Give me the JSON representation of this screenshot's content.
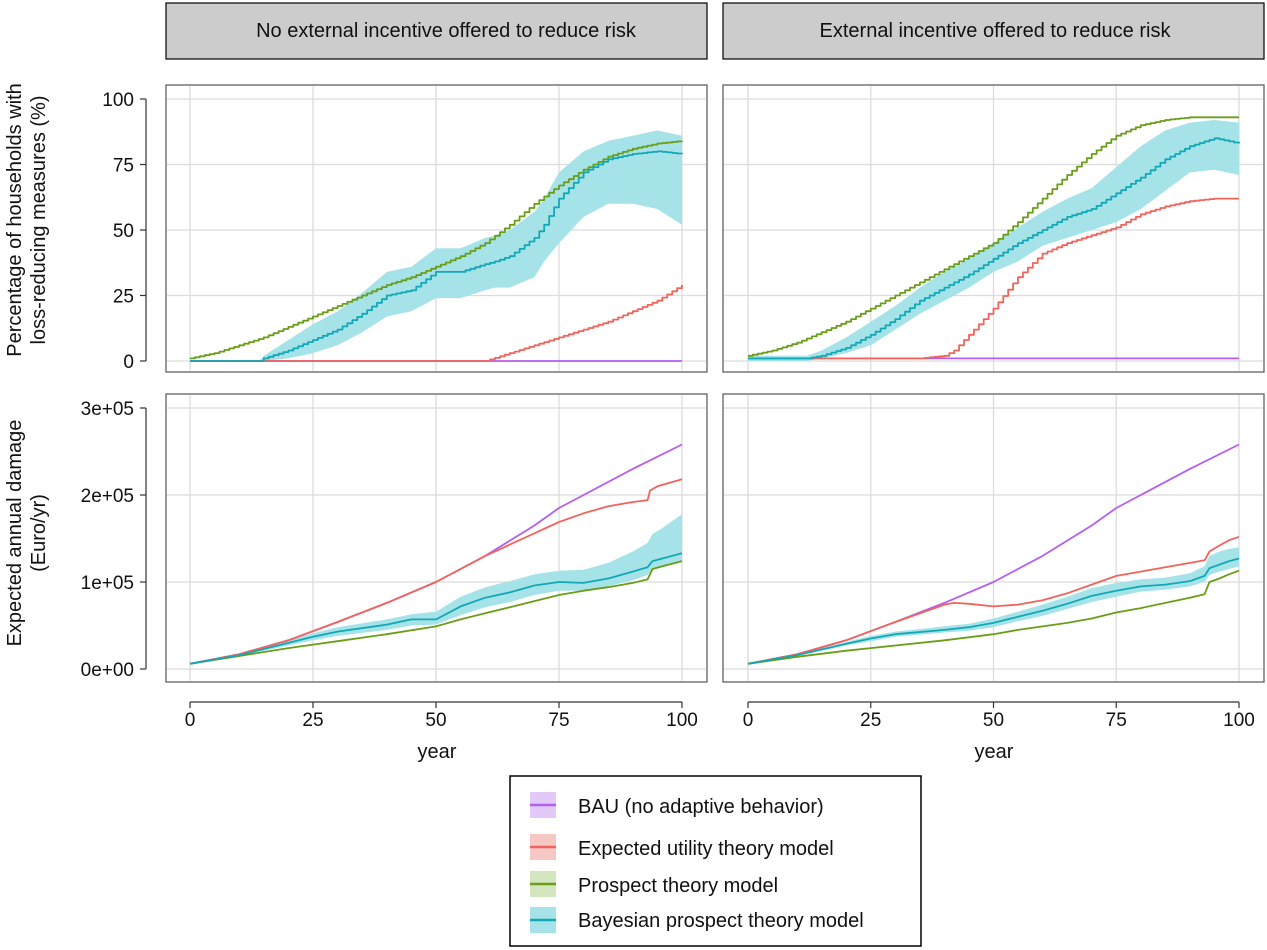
{
  "chart_data": {
    "type": "line",
    "facets": {
      "columns": [
        "No external incentive offered to reduce risk",
        "External incentive offered to reduce risk"
      ],
      "rows": [
        "adoption",
        "damage"
      ]
    },
    "xlabel": "year",
    "ylabels": {
      "adoption": [
        "Percentage of households with",
        "loss-reducing measures (%)"
      ],
      "damage": [
        "Expected annual damage",
        "(Euro/yr)"
      ]
    },
    "xlim": [
      0,
      100
    ],
    "xticks": [
      0,
      25,
      50,
      75,
      100
    ],
    "ylim": {
      "adoption": [
        0,
        100
      ],
      "damage": [
        0,
        300000
      ]
    },
    "yticks": {
      "adoption": [
        0,
        25,
        50,
        75,
        100
      ],
      "damage": [
        0,
        100000,
        200000,
        300000
      ]
    },
    "ytick_labels": {
      "adoption": [
        "0",
        "25",
        "50",
        "75",
        "100"
      ],
      "damage": [
        "0e+00",
        "1e+05",
        "2e+05",
        "3e+05"
      ]
    },
    "grid": true,
    "legend": {
      "placement": "bottom-center",
      "entries": [
        "BAU (no adaptive behavior)",
        "Expected utility theory model",
        "Prospect theory model",
        "Bayesian prospect theory model"
      ]
    },
    "colors": {
      "BAU (no adaptive behavior)": "#b45ff0",
      "Expected utility theory model": "#f0645c",
      "Prospect theory model": "#6a9d18",
      "Bayesian prospect theory model": "#12a8b5",
      "band_fill": "#a6e3e8"
    },
    "panels": [
      {
        "col": 0,
        "row": "adoption",
        "series": [
          {
            "name": "BAU (no adaptive behavior)",
            "step": false,
            "x": [
              0,
              100
            ],
            "y": [
              0,
              0
            ]
          },
          {
            "name": "Expected utility theory model",
            "step": true,
            "x": [
              0,
              60,
              65,
              70,
              75,
              80,
              85,
              90,
              95,
              100
            ],
            "y": [
              0,
              0,
              3,
              6,
              9,
              12,
              15,
              19,
              23,
              29
            ]
          },
          {
            "name": "Prospect theory model",
            "step": true,
            "x": [
              0,
              5,
              10,
              15,
              20,
              25,
              30,
              35,
              40,
              45,
              50,
              55,
              60,
              65,
              70,
              75,
              80,
              85,
              90,
              95,
              100
            ],
            "y": [
              1,
              3,
              6,
              9,
              13,
              17,
              21,
              25,
              29,
              32,
              36,
              40,
              45,
              52,
              60,
              67,
              73,
              78,
              81,
              83,
              84
            ]
          },
          {
            "name": "Bayesian prospect theory model",
            "step": true,
            "x": [
              0,
              14,
              15,
              20,
              25,
              30,
              35,
              40,
              45,
              50,
              55,
              60,
              62,
              65,
              70,
              72,
              75,
              80,
              85,
              90,
              95,
              100
            ],
            "y": [
              0,
              0,
              1,
              4,
              8,
              12,
              18,
              25,
              27,
              34,
              34,
              37,
              38,
              40,
              47,
              52,
              62,
              72,
              77,
              79,
              80,
              79
            ],
            "lower": [
              0,
              0,
              0,
              1,
              3,
              6,
              11,
              17,
              19,
              24,
              24,
              27,
              28,
              28,
              32,
              38,
              45,
              55,
              60,
              60,
              58,
              52
            ],
            "upper": [
              0,
              0,
              2,
              8,
              14,
              19,
              26,
              34,
              36,
              43,
              43,
              47,
              48,
              50,
              57,
              62,
              72,
              80,
              84,
              86,
              88,
              86
            ]
          }
        ]
      },
      {
        "col": 1,
        "row": "adoption",
        "series": [
          {
            "name": "BAU (no adaptive behavior)",
            "step": false,
            "x": [
              0,
              100
            ],
            "y": [
              1,
              1
            ]
          },
          {
            "name": "Expected utility theory model",
            "step": true,
            "x": [
              0,
              35,
              40,
              42,
              45,
              50,
              55,
              60,
              65,
              70,
              75,
              80,
              85,
              90,
              95,
              100
            ],
            "y": [
              1,
              1,
              2,
              4,
              10,
              20,
              32,
              41,
              45,
              48,
              51,
              56,
              59,
              61,
              62,
              62
            ]
          },
          {
            "name": "Prospect theory model",
            "step": true,
            "x": [
              0,
              5,
              10,
              15,
              20,
              25,
              30,
              35,
              40,
              45,
              50,
              55,
              60,
              65,
              70,
              75,
              80,
              85,
              90,
              95,
              100
            ],
            "y": [
              2,
              4,
              7,
              11,
              15,
              20,
              25,
              30,
              35,
              40,
              45,
              53,
              62,
              71,
              79,
              86,
              90,
              92,
              93,
              93,
              93
            ]
          },
          {
            "name": "Bayesian prospect theory model",
            "step": true,
            "x": [
              0,
              12,
              15,
              20,
              25,
              30,
              35,
              40,
              45,
              50,
              55,
              60,
              65,
              70,
              75,
              80,
              85,
              90,
              95,
              100
            ],
            "y": [
              1,
              1,
              2,
              5,
              10,
              16,
              23,
              28,
              33,
              39,
              45,
              50,
              55,
              58,
              64,
              70,
              77,
              82,
              85,
              83
            ],
            "lower": [
              0,
              0,
              1,
              3,
              6,
              12,
              18,
              23,
              28,
              34,
              38,
              44,
              47,
              50,
              53,
              58,
              65,
              72,
              73,
              71
            ],
            "upper": [
              2,
              2,
              4,
              9,
              15,
              21,
              28,
              34,
              39,
              45,
              51,
              57,
              62,
              66,
              74,
              82,
              88,
              91,
              92,
              91
            ]
          }
        ]
      },
      {
        "col": 0,
        "row": "damage",
        "series": [
          {
            "name": "BAU (no adaptive behavior)",
            "step": false,
            "x": [
              0,
              10,
              20,
              30,
              40,
              50,
              60,
              70,
              75,
              80,
              90,
              100
            ],
            "y": [
              6000,
              17000,
              33000,
              54000,
              76000,
              100000,
              130000,
              165000,
              185000,
              200000,
              230000,
              258000
            ]
          },
          {
            "name": "Expected utility theory model",
            "step": false,
            "x": [
              0,
              10,
              20,
              30,
              40,
              50,
              60,
              65,
              70,
              75,
              80,
              85,
              90,
              93,
              93.5,
              95,
              100
            ],
            "y": [
              6000,
              17000,
              33000,
              54000,
              76000,
              100000,
              130000,
              143000,
              156000,
              169000,
              179000,
              187000,
              192000,
              194000,
              205000,
              210000,
              218000
            ]
          },
          {
            "name": "Prospect theory model",
            "step": false,
            "x": [
              0,
              10,
              20,
              25,
              30,
              40,
              50,
              55,
              60,
              65,
              70,
              75,
              80,
              85,
              90,
              93,
              94,
              96,
              98,
              100
            ],
            "y": [
              6000,
              15000,
              24000,
              28000,
              32000,
              40000,
              49000,
              57000,
              64000,
              71000,
              78000,
              85000,
              90000,
              94000,
              99000,
              103000,
              115000,
              118000,
              121000,
              124000
            ]
          },
          {
            "name": "Bayesian prospect theory model",
            "step": false,
            "x": [
              0,
              10,
              20,
              25,
              30,
              40,
              45,
              50,
              55,
              60,
              65,
              70,
              75,
              80,
              85,
              90,
              93,
              94,
              96,
              98,
              100
            ],
            "y": [
              6000,
              16000,
              30000,
              37000,
              43000,
              51000,
              57000,
              57000,
              72000,
              82000,
              88000,
              96000,
              100000,
              99000,
              104000,
              112000,
              117000,
              124000,
              127000,
              130000,
              133000
            ],
            "lower": [
              6000,
              15000,
              27000,
              33000,
              38000,
              45000,
              50000,
              51000,
              62000,
              71000,
              77000,
              85000,
              90000,
              90000,
              95000,
              102000,
              108000,
              114000,
              117000,
              120000,
              123000
            ],
            "upper": [
              6000,
              17000,
              33000,
              41000,
              48000,
              57000,
              63000,
              66000,
              83000,
              94000,
              101000,
              109000,
              113000,
              114000,
              122000,
              135000,
              145000,
              155000,
              162000,
              170000,
              178000
            ]
          }
        ]
      },
      {
        "col": 1,
        "row": "damage",
        "series": [
          {
            "name": "BAU (no adaptive behavior)",
            "step": false,
            "x": [
              0,
              10,
              20,
              30,
              40,
              50,
              60,
              70,
              75,
              80,
              90,
              100
            ],
            "y": [
              6000,
              17000,
              33000,
              54000,
              76000,
              100000,
              130000,
              165000,
              185000,
              200000,
              230000,
              258000
            ]
          },
          {
            "name": "Expected utility theory model",
            "step": false,
            "x": [
              0,
              10,
              20,
              30,
              38,
              40,
              42,
              45,
              50,
              55,
              60,
              65,
              70,
              75,
              80,
              85,
              90,
              93,
              94,
              96,
              98,
              100
            ],
            "y": [
              6000,
              17000,
              33000,
              54000,
              70000,
              74000,
              76000,
              75000,
              72000,
              74000,
              79000,
              87000,
              97000,
              107000,
              112000,
              117000,
              122000,
              125000,
              135000,
              142000,
              148000,
              152000
            ]
          },
          {
            "name": "Prospect theory model",
            "step": false,
            "x": [
              0,
              10,
              20,
              25,
              30,
              40,
              50,
              55,
              60,
              65,
              70,
              75,
              80,
              85,
              90,
              93,
              94,
              96,
              98,
              100
            ],
            "y": [
              6000,
              14000,
              21000,
              24000,
              27000,
              33000,
              40000,
              45000,
              49000,
              53000,
              58000,
              65000,
              70000,
              76000,
              82000,
              86000,
              100000,
              104000,
              109000,
              113000
            ]
          },
          {
            "name": "Bayesian prospect theory model",
            "step": false,
            "x": [
              0,
              10,
              20,
              25,
              30,
              40,
              45,
              50,
              55,
              60,
              65,
              70,
              75,
              80,
              85,
              90,
              93,
              94,
              96,
              98,
              100
            ],
            "y": [
              6000,
              16000,
              29000,
              35000,
              40000,
              45000,
              48000,
              53000,
              60000,
              67000,
              75000,
              84000,
              90000,
              95000,
              97000,
              101000,
              107000,
              116000,
              120000,
              124000,
              127000
            ],
            "lower": [
              6000,
              15000,
              27000,
              32000,
              37000,
              42000,
              44000,
              48000,
              55000,
              61000,
              69000,
              77000,
              83000,
              89000,
              91000,
              95000,
              100000,
              108000,
              112000,
              115000,
              118000
            ],
            "upper": [
              6000,
              17000,
              31000,
              38000,
              43000,
              49000,
              52000,
              58000,
              66000,
              74000,
              83000,
              93000,
              99000,
              103000,
              105000,
              110000,
              118000,
              130000,
              135000,
              138000,
              140000
            ]
          }
        ]
      }
    ]
  }
}
